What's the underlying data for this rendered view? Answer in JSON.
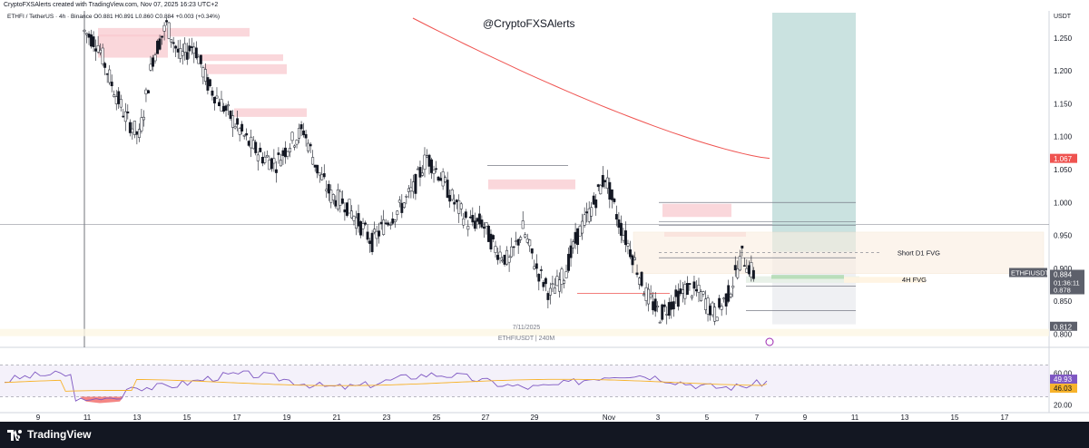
{
  "header": {
    "created_line": "CryptoFXSAlerts created with TradingView.com, Nov 07, 2025 16:23 UTC+2",
    "symbol_line": "ETHFI / TetherUS · 4h · Binance  O0.881 H0.891 L0.860 C0.884 +0.003 (+0.34%)",
    "watermark": "@CryptoFXSAlerts"
  },
  "price_axis": {
    "unit": "USDT",
    "ticks": [
      "1.250",
      "1.200",
      "1.150",
      "1.100",
      "1.050",
      "1.000",
      "0.950",
      "0.900",
      "0.850",
      "0.800"
    ],
    "ma_label": "1.067",
    "last_label": "0.884",
    "countdown": "01:36:11",
    "level_878": "0.878",
    "level_812": "0.812",
    "symbol_tag": "ETHFIUSDT"
  },
  "rsi_axis": {
    "ticks": [
      "60.00",
      "20.00"
    ],
    "rsi_label": "49.93",
    "rsi_ma_label": "46.03"
  },
  "time_axis": {
    "ticks": [
      "9",
      "11",
      "13",
      "15",
      "17",
      "19",
      "21",
      "23",
      "25",
      "27",
      "29",
      "Nov",
      "3",
      "5",
      "7",
      "9",
      "11",
      "13",
      "15",
      "17"
    ]
  },
  "annotations": {
    "short_fvg": "Short D1 FVG",
    "h4_fvg": "4H FVG",
    "date_note": "7/11/2025",
    "pair_note": "ETHFIUSDT | 240M"
  },
  "colors": {
    "up": "#ffffff",
    "down": "#131722",
    "ma": "#ef5350",
    "fvg_red": "#f8c9cf",
    "target_zone": "#a7cfcc",
    "rsi_line": "#7e57c2",
    "rsi_ma": "#f7b32b"
  },
  "footer": {
    "brand": "TradingView"
  },
  "chart_data": {
    "type": "candlestick",
    "title": "ETHFI / TetherUS · 4h · Binance",
    "ylabel": "USDT",
    "ylim": [
      0.78,
      1.28
    ],
    "x_labels": [
      "9",
      "11",
      "13",
      "15",
      "17",
      "19",
      "21",
      "23",
      "25",
      "27",
      "29",
      "Nov",
      "3",
      "5",
      "7"
    ],
    "close_path": [
      1.26,
      1.24,
      1.18,
      1.13,
      1.1,
      1.22,
      1.27,
      1.22,
      1.24,
      1.18,
      1.15,
      1.12,
      1.09,
      1.07,
      1.06,
      1.09,
      1.11,
      1.05,
      1.01,
      1.0,
      0.97,
      0.94,
      0.97,
      0.99,
      1.02,
      1.07,
      1.04,
      1.0,
      0.97,
      0.97,
      0.93,
      0.91,
      0.96,
      0.9,
      0.86,
      0.89,
      0.95,
      0.99,
      1.04,
      0.97,
      0.92,
      0.86,
      0.83,
      0.85,
      0.87,
      0.86,
      0.83,
      0.86,
      0.92,
      0.884
    ],
    "moving_average": {
      "start": 1.28,
      "end": 1.067
    },
    "last_price": 0.884,
    "rsi": {
      "value": 49.93,
      "ma": 46.03,
      "levels": [
        70,
        30
      ]
    }
  }
}
